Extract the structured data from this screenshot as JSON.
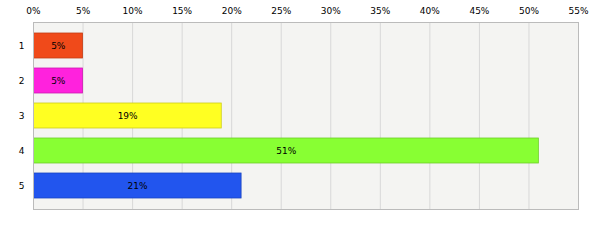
{
  "chart_data": {
    "type": "bar",
    "orientation": "horizontal",
    "categories": [
      "1",
      "2",
      "3",
      "4",
      "5"
    ],
    "values": [
      5,
      5,
      19,
      51,
      21
    ],
    "value_labels": [
      "5%",
      "5%",
      "19%",
      "51%",
      "21%"
    ],
    "colors": [
      "#f04a1a",
      "#ff22dd",
      "#ffff22",
      "#88ff33",
      "#2255ee"
    ],
    "xlim": [
      0,
      55
    ],
    "xticks": [
      {
        "value": 0,
        "label": "0%"
      },
      {
        "value": 5,
        "label": "5%"
      },
      {
        "value": 10,
        "label": "10%"
      },
      {
        "value": 15,
        "label": "15%"
      },
      {
        "value": 20,
        "label": "20%"
      },
      {
        "value": 25,
        "label": "25%"
      },
      {
        "value": 30,
        "label": "30%"
      },
      {
        "value": 35,
        "label": "35%"
      },
      {
        "value": 40,
        "label": "40%"
      },
      {
        "value": 45,
        "label": "45%"
      },
      {
        "value": 50,
        "label": "50%"
      },
      {
        "value": 55,
        "label": "55%"
      }
    ],
    "grid": true,
    "data_labels": true
  }
}
